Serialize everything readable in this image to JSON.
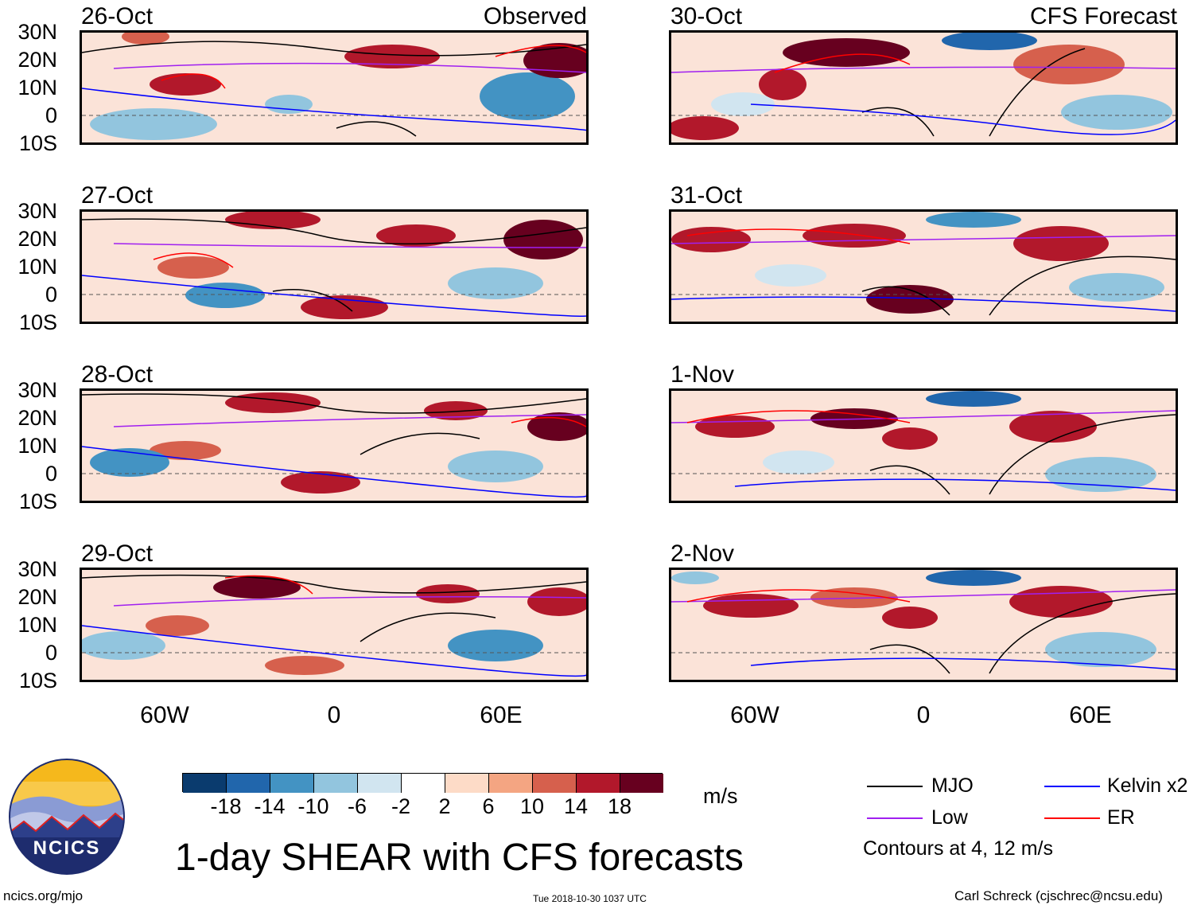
{
  "panel_titles": {
    "observed": "Observed",
    "forecast": "CFS Forecast"
  },
  "left_dates": [
    "26-Oct",
    "27-Oct",
    "28-Oct",
    "29-Oct"
  ],
  "right_dates": [
    "30-Oct",
    "31-Oct",
    "1-Nov",
    "2-Nov"
  ],
  "lat_labels": [
    "30N",
    "20N",
    "10N",
    "0",
    "10S"
  ],
  "lon_labels": [
    "60W",
    "0",
    "60E"
  ],
  "colorbar": {
    "ticks": [
      "-18",
      "-14",
      "-10",
      "-6",
      "-2",
      "2",
      "6",
      "10",
      "14",
      "18"
    ],
    "colors": [
      "#0a3b6e",
      "#2166ac",
      "#4393c3",
      "#92c5de",
      "#d1e5f0",
      "#ffffff",
      "#fddbc7",
      "#f4a582",
      "#d6604d",
      "#b2182b",
      "#67001f"
    ],
    "units": "m/s"
  },
  "legend": {
    "mjo": {
      "label": "MJO",
      "color": "#000000"
    },
    "kelvin": {
      "label": "Kelvin x2",
      "color": "#0000ff"
    },
    "low": {
      "label": "Low",
      "color": "#a020f0"
    },
    "er": {
      "label": "ER",
      "color": "#ff0000"
    },
    "note": "Contours at 4, 12 m/s"
  },
  "logo_text": "NCICS",
  "main_title": "1-day SHEAR with CFS forecasts",
  "footer": {
    "left": "ncics.org/mjo",
    "center": "Tue 2018-10-30 1037 UTC",
    "right": "Carl Schreck (cjschrec@ncsu.edu)"
  }
}
